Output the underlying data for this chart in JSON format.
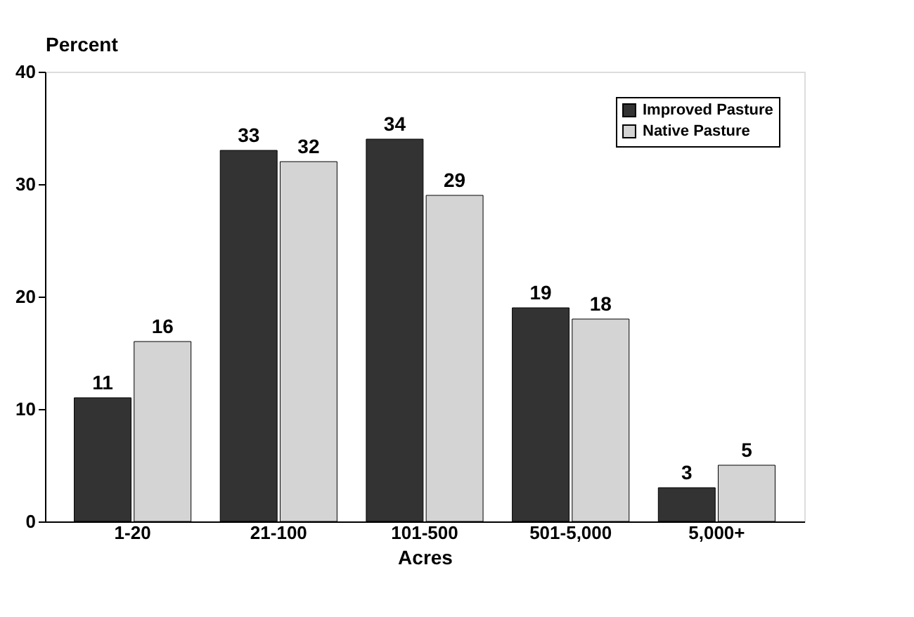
{
  "chart_data": {
    "type": "bar",
    "categories": [
      "1-20",
      "21-100",
      "101-500",
      "501-5,000",
      "5,000+"
    ],
    "series": [
      {
        "name": "Improved Pasture",
        "color": "#333333",
        "values": [
          11,
          33,
          34,
          19,
          3
        ]
      },
      {
        "name": "Native Pasture",
        "color": "#d4d4d4",
        "values": [
          16,
          32,
          29,
          18,
          5
        ]
      }
    ],
    "ylabel": "Percent",
    "xlabel": "Acres",
    "ylim": [
      0,
      40
    ],
    "yticks": [
      0,
      10,
      20,
      30,
      40
    ],
    "data_labels": true,
    "legend": "top right",
    "grid": false
  }
}
